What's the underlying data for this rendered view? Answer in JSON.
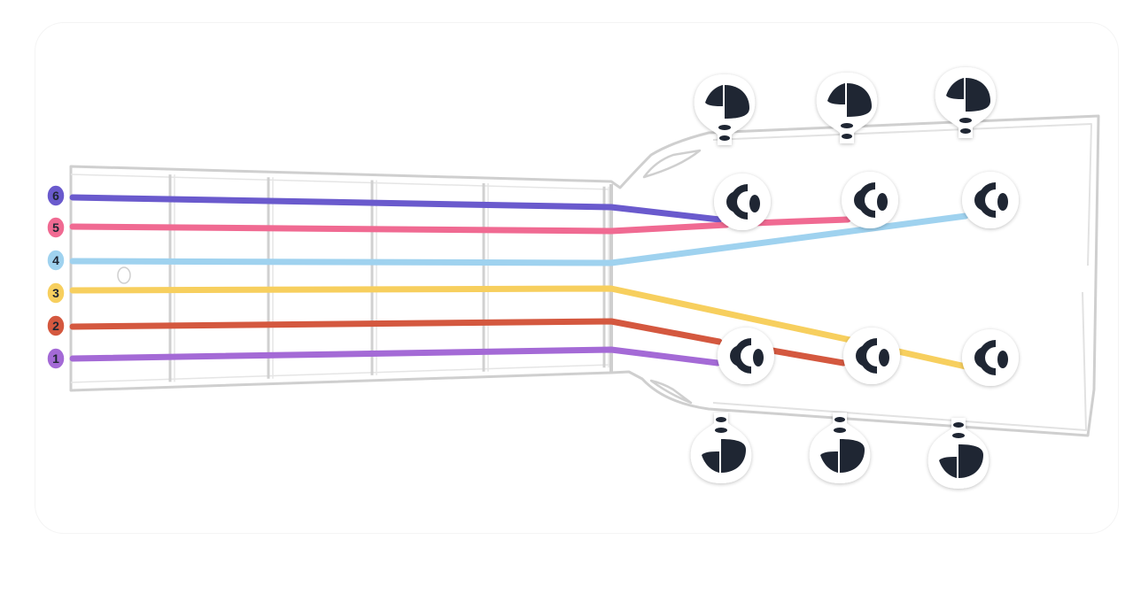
{
  "diagram": {
    "colors": {
      "outline": "#d8d8d8",
      "peg": "#1f2633",
      "background": "#ffffff"
    },
    "strings": [
      {
        "label": "6",
        "color": "#6a5acd"
      },
      {
        "label": "5",
        "color": "#f06a92"
      },
      {
        "label": "4",
        "color": "#9fd2ef"
      },
      {
        "label": "3",
        "color": "#f7cf5e"
      },
      {
        "label": "2",
        "color": "#d4583f"
      },
      {
        "label": "1",
        "color": "#a46ad6"
      }
    ],
    "fret_count": 5,
    "fret_dots": 1,
    "tuning_pegs": {
      "top": 3,
      "bottom": 3,
      "icon": "tuning-peg-icon"
    },
    "post_rows": {
      "upper": 3,
      "lower": 3,
      "icon": "tuning-post-icon"
    }
  }
}
